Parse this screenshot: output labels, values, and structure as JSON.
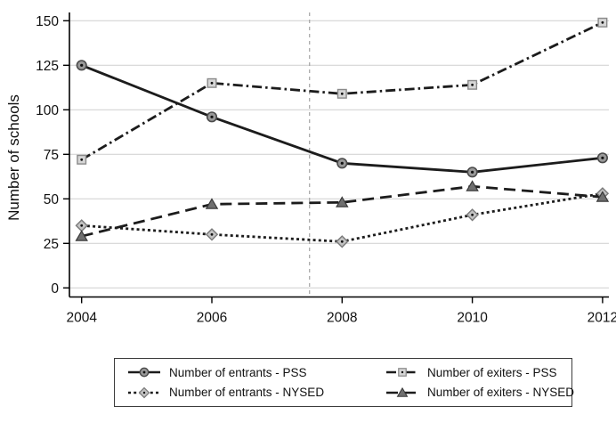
{
  "chart_data": {
    "type": "line",
    "title": "",
    "xlabel": "",
    "ylabel": "Number of schools",
    "categories": [
      2004,
      2006,
      2008,
      2010,
      2012
    ],
    "y_ticks": [
      0,
      25,
      50,
      75,
      100,
      125,
      150
    ],
    "ylim": [
      0,
      150
    ],
    "xlim": [
      2004,
      2012
    ],
    "grid": true,
    "vline_x": 2007.5,
    "legend_position": "bottom",
    "series": [
      {
        "name": "Number of entrants - PSS",
        "values": [
          125,
          96,
          70,
          65,
          73
        ],
        "marker": "circle",
        "line_style": "solid",
        "line_color": "#1c1c1c",
        "marker_fill": "#999999",
        "marker_stroke": "#4a4a4a"
      },
      {
        "name": "Number of exiters - PSS",
        "values": [
          72,
          115,
          109,
          114,
          149
        ],
        "marker": "square",
        "line_style": "dash-dot",
        "line_color": "#1c1c1c",
        "marker_fill": "#d6d6d6",
        "marker_stroke": "#8a8a8a"
      },
      {
        "name": "Number of entrants - NYSED",
        "values": [
          35,
          30,
          26,
          41,
          53
        ],
        "marker": "diamond",
        "line_style": "dotted",
        "line_color": "#1c1c1c",
        "marker_fill": "#c2c2c2",
        "marker_stroke": "#7a7a7a"
      },
      {
        "name": "Number of exiters - NYSED",
        "values": [
          29,
          47,
          48,
          57,
          51
        ],
        "marker": "triangle",
        "line_style": "long-dash",
        "line_color": "#1c1c1c",
        "marker_fill": "#6f6f6f",
        "marker_stroke": "#383838"
      }
    ],
    "colors": {
      "axis": "#000000",
      "gridline": "#d4d4d4",
      "tick_text": "#111111",
      "vline": "#a3a3a3",
      "marker_dot": "#111111",
      "background": "#ffffff"
    }
  }
}
